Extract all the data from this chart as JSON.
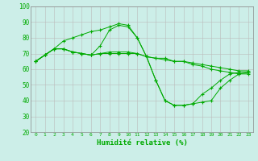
{
  "xlabel": "Humidité relative (%)",
  "background_color": "#cceee8",
  "grid_color": "#bbbbbb",
  "line_color": "#00aa00",
  "marker": "+",
  "xlim": [
    -0.5,
    23.5
  ],
  "ylim": [
    20,
    100
  ],
  "yticks": [
    20,
    30,
    40,
    50,
    60,
    70,
    80,
    90,
    100
  ],
  "xticks": [
    0,
    1,
    2,
    3,
    4,
    5,
    6,
    7,
    8,
    9,
    10,
    11,
    12,
    13,
    14,
    15,
    16,
    17,
    18,
    19,
    20,
    21,
    22,
    23
  ],
  "series": [
    [
      65,
      69,
      73,
      78,
      80,
      82,
      84,
      85,
      87,
      89,
      88,
      80,
      68,
      53,
      40,
      37,
      37,
      38,
      39,
      40,
      48,
      53,
      57,
      58
    ],
    [
      65,
      69,
      73,
      73,
      71,
      70,
      69,
      75,
      85,
      88,
      87,
      80,
      68,
      53,
      40,
      37,
      37,
      38,
      44,
      48,
      53,
      57,
      58,
      58
    ],
    [
      65,
      69,
      73,
      73,
      71,
      70,
      69,
      70,
      71,
      71,
      71,
      70,
      68,
      67,
      67,
      65,
      65,
      64,
      63,
      62,
      61,
      60,
      59,
      59
    ],
    [
      65,
      69,
      73,
      73,
      71,
      70,
      69,
      70,
      70,
      70,
      70,
      70,
      68,
      67,
      66,
      65,
      65,
      63,
      62,
      60,
      59,
      58,
      57,
      57
    ]
  ]
}
